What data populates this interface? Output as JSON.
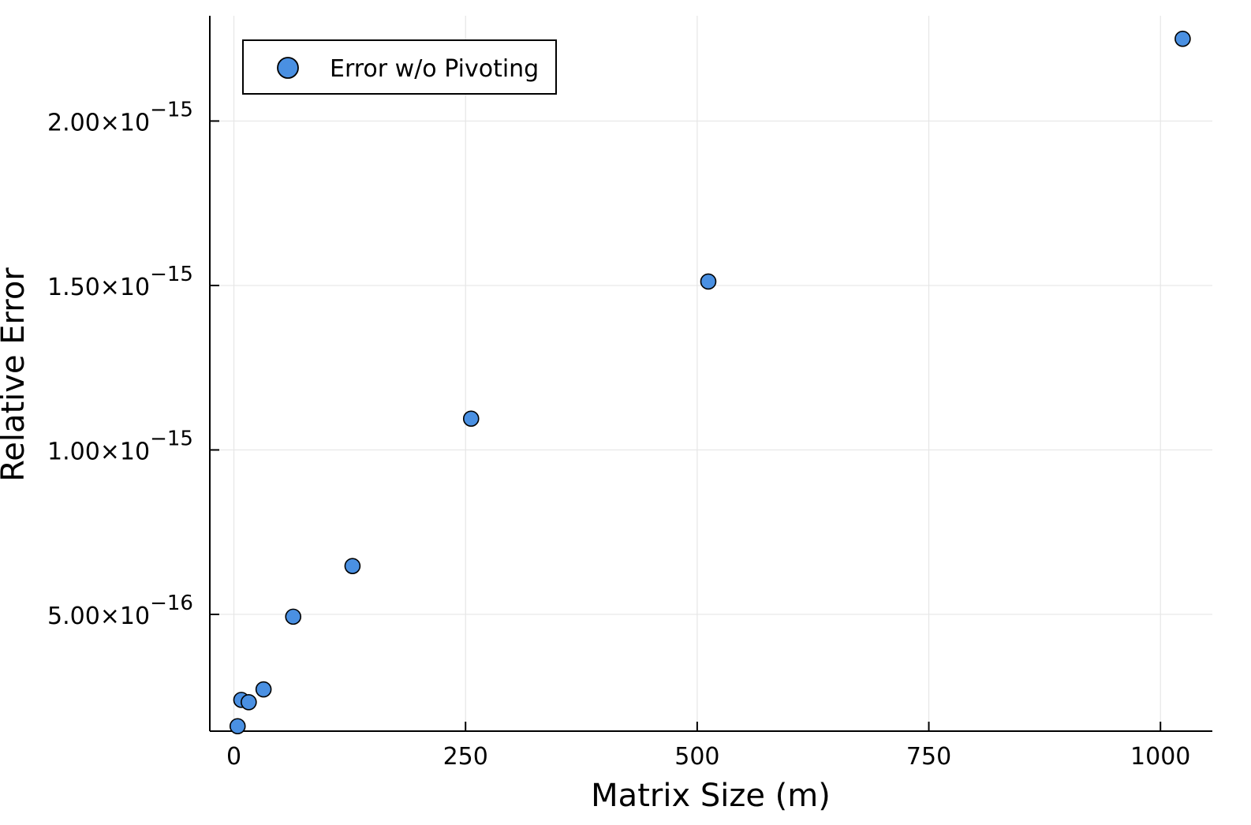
{
  "chart_data": {
    "type": "scatter",
    "xlabel": "Matrix Size (m)",
    "ylabel": "Relative Error",
    "xlim": [
      -26,
      1056
    ],
    "ylim": [
      1.45e-16,
      2.32e-15
    ],
    "x_ticks": [
      {
        "value": 0,
        "label": "0"
      },
      {
        "value": 250,
        "label": "250"
      },
      {
        "value": 500,
        "label": "500"
      },
      {
        "value": 750,
        "label": "750"
      },
      {
        "value": 1000,
        "label": "1000"
      }
    ],
    "y_ticks": [
      {
        "value": 5e-16,
        "mantissa": "5.00×10",
        "exponent": "−16"
      },
      {
        "value": 1e-15,
        "mantissa": "1.00×10",
        "exponent": "−15"
      },
      {
        "value": 1.5e-15,
        "mantissa": "1.50×10",
        "exponent": "−15"
      },
      {
        "value": 2e-15,
        "mantissa": "2.00×10",
        "exponent": "−15"
      }
    ],
    "grid": true,
    "legend_position": "top-left",
    "series": [
      {
        "name": "Error w/o Pivoting",
        "color": "#4a90e2",
        "points": [
          {
            "x": 4,
            "y": 1.6e-16
          },
          {
            "x": 8,
            "y": 2.4e-16
          },
          {
            "x": 16,
            "y": 2.33e-16
          },
          {
            "x": 32,
            "y": 2.72e-16
          },
          {
            "x": 64,
            "y": 4.93e-16
          },
          {
            "x": 128,
            "y": 6.47e-16
          },
          {
            "x": 256,
            "y": 1.095e-15
          },
          {
            "x": 512,
            "y": 1.512e-15
          },
          {
            "x": 1024,
            "y": 2.25e-15
          }
        ]
      }
    ]
  }
}
